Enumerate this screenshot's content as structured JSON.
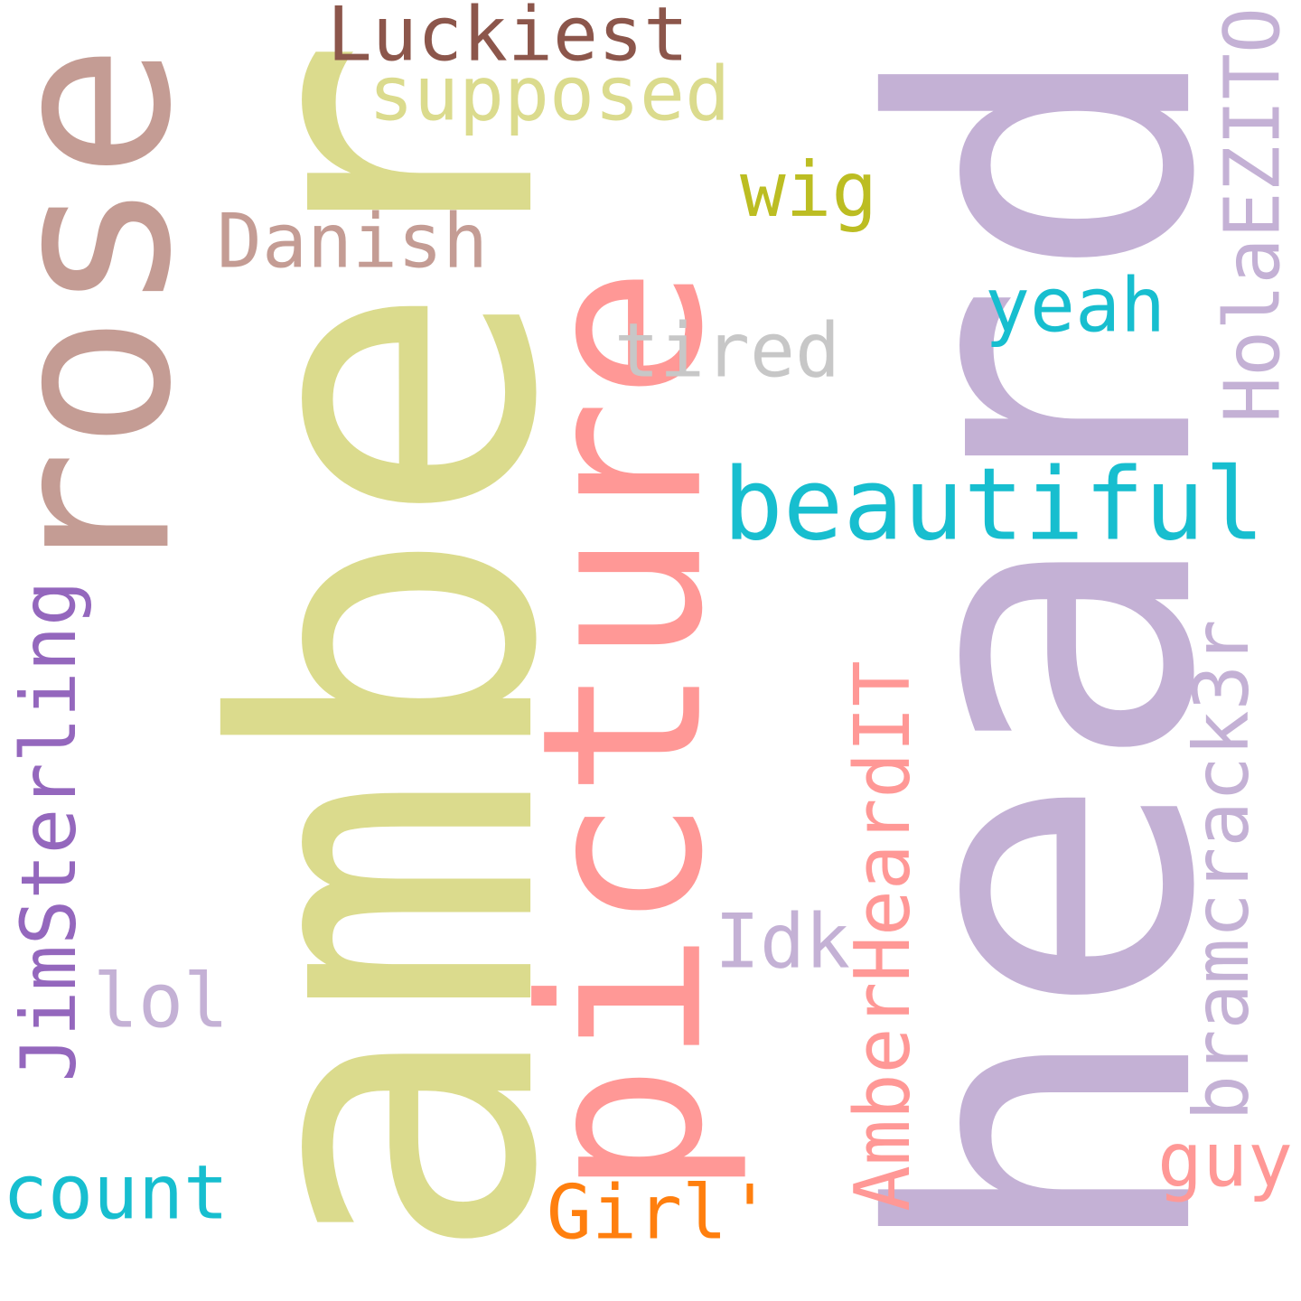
{
  "words": [
    {
      "id": "heard",
      "text": "heard",
      "color": "#c4b1d5",
      "orientation": "vertical"
    },
    {
      "id": "amber",
      "text": "amber",
      "color": "#dbdb8d",
      "orientation": "vertical"
    },
    {
      "id": "picture",
      "text": "picture",
      "color": "#ff9896",
      "orientation": "vertical"
    },
    {
      "id": "rose",
      "text": "rose",
      "color": "#c49c94",
      "orientation": "vertical"
    },
    {
      "id": "beautiful",
      "text": "beautiful",
      "color": "#17becf",
      "orientation": "horizontal"
    },
    {
      "id": "luckiest",
      "text": "Luckiest",
      "color": "#8c564b",
      "orientation": "horizontal"
    },
    {
      "id": "supposed",
      "text": "supposed",
      "color": "#dbdb8d",
      "orientation": "horizontal"
    },
    {
      "id": "wig",
      "text": "wig",
      "color": "#bcbd22",
      "orientation": "horizontal"
    },
    {
      "id": "danish",
      "text": "Danish",
      "color": "#c49c94",
      "orientation": "horizontal"
    },
    {
      "id": "yeah",
      "text": "yeah",
      "color": "#17becf",
      "orientation": "horizontal"
    },
    {
      "id": "tired",
      "text": "tired",
      "color": "#c7c7c7",
      "orientation": "horizontal"
    },
    {
      "id": "holaezito",
      "text": "HolaEZITO",
      "color": "#c4b1d5",
      "orientation": "vertical"
    },
    {
      "id": "jimsterling",
      "text": "JimSterling",
      "color": "#9467bd",
      "orientation": "vertical"
    },
    {
      "id": "lol",
      "text": "lol",
      "color": "#c4b1d5",
      "orientation": "horizontal"
    },
    {
      "id": "idk",
      "text": "Idk",
      "color": "#c4b1d5",
      "orientation": "horizontal"
    },
    {
      "id": "amberheardit",
      "text": "AmberHeardIT",
      "color": "#ff9896",
      "orientation": "vertical"
    },
    {
      "id": "bramcrack3r",
      "text": "bramcrack3r",
      "color": "#c4b1d5",
      "orientation": "vertical"
    },
    {
      "id": "guy",
      "text": "guy",
      "color": "#ff9896",
      "orientation": "horizontal"
    },
    {
      "id": "girl",
      "text": "Girl'",
      "color": "#ff7f0e",
      "orientation": "horizontal"
    },
    {
      "id": "count",
      "text": "count",
      "color": "#17becf",
      "orientation": "horizontal"
    }
  ]
}
